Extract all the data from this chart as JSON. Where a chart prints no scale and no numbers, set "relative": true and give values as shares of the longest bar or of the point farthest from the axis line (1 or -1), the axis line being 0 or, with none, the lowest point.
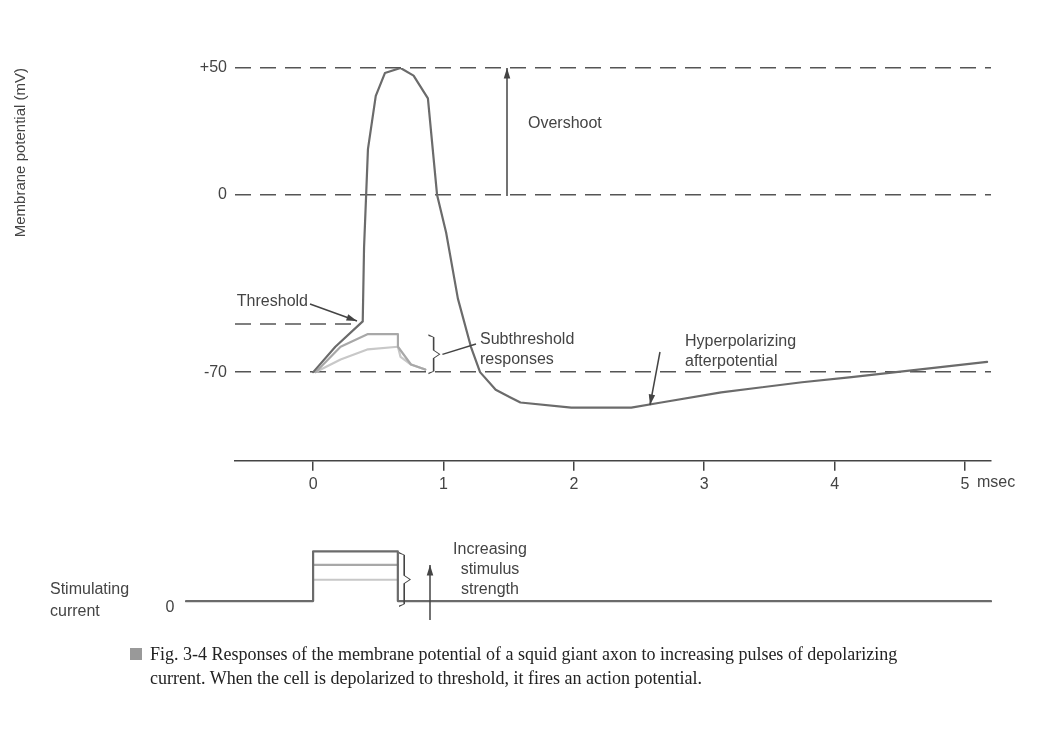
{
  "chart_data": [
    {
      "type": "line",
      "ylabel": "Membrane potential (mV)",
      "xlabel": "msec",
      "xlim": [
        -0.6,
        5.2
      ],
      "xticks": [
        0,
        1,
        2,
        3,
        4,
        5
      ],
      "ylim": [
        -105,
        50
      ],
      "yticks": [
        {
          "value": 50,
          "label": "+50"
        },
        0,
        -70
      ],
      "grid": "y",
      "legend": false,
      "marker": "none",
      "series": [
        {
          "color": "#6b6b6b",
          "x": [
            0,
            0.17,
            0.38,
            0.39,
            0.42,
            0.48,
            0.55,
            0.67,
            0.77,
            0.88,
            0.95,
            1.02,
            1.11,
            1.21,
            1.28,
            1.4,
            1.59,
            1.98,
            2.44,
            2.67,
            3.13,
            3.75,
            4.13,
            5.17
          ],
          "values": [
            -70,
            -60,
            -50,
            -21,
            18,
            39,
            48,
            50,
            47,
            38,
            0,
            -15,
            -41,
            -60,
            -70,
            -77,
            -82,
            -84,
            -84,
            -82,
            -78,
            -74,
            -72,
            -66
          ]
        },
        {
          "color": "#a8a8a8",
          "x": [
            0.02,
            0.21,
            0.42,
            0.65,
            0.65,
            0.75,
            0.86
          ],
          "values": [
            -70,
            -60,
            -55,
            -55,
            -60,
            -67,
            -69
          ]
        },
        {
          "color": "#c8c8c8",
          "x": [
            0.02,
            0.21,
            0.42,
            0.65,
            0.67,
            0.75,
            0.86
          ],
          "values": [
            -70,
            -65,
            -61,
            -60,
            -64,
            -67,
            -69
          ]
        }
      ],
      "ref_lines": [
        {
          "axis": "y",
          "value": -51,
          "label": "Threshold",
          "color": "#555555",
          "line_style": "dashed"
        }
      ],
      "annotations": [
        "Overshoot",
        {
          "text": "Subthreshold responses",
          "x": 0.93,
          "y": -63
        },
        "Hyperpolarizing afterpotential"
      ]
    },
    {
      "type": "step",
      "relative": true,
      "ylabel": "Stimulating current",
      "tick_labels": false,
      "legend": false,
      "marker": "none",
      "categories": [
        null,
        null,
        null,
        null,
        null,
        null,
        null,
        null,
        null,
        null,
        null,
        null,
        null,
        null,
        null,
        null,
        null,
        null,
        null,
        null
      ],
      "series": [
        {
          "color": "#6b6b6b",
          "values": [
            0,
            0,
            0,
            1,
            1,
            0,
            0,
            0,
            0,
            0,
            0,
            0,
            0,
            0,
            0,
            0,
            0,
            0,
            0,
            0
          ]
        },
        {
          "color": "#a8a8a8",
          "values": [
            null,
            null,
            null,
            0.73,
            0.73,
            0.73,
            null,
            null,
            null,
            null,
            null,
            null,
            null,
            null,
            null,
            null,
            null,
            null,
            null,
            null
          ]
        },
        {
          "color": "#c8c8c8",
          "values": [
            null,
            null,
            null,
            0.43,
            0.43,
            0.43,
            null,
            null,
            null,
            null,
            null,
            null,
            null,
            null,
            null,
            null,
            null,
            null,
            null,
            null
          ]
        }
      ],
      "annotations": [
        "0",
        "Increasing stimulus strength",
        "Fig. 3-4  Responses of the membrane potential of a squid giant axon to increasing pulses of depolarizing current. When the cell is depolarized to threshold, it fires an action potential."
      ]
    }
  ]
}
